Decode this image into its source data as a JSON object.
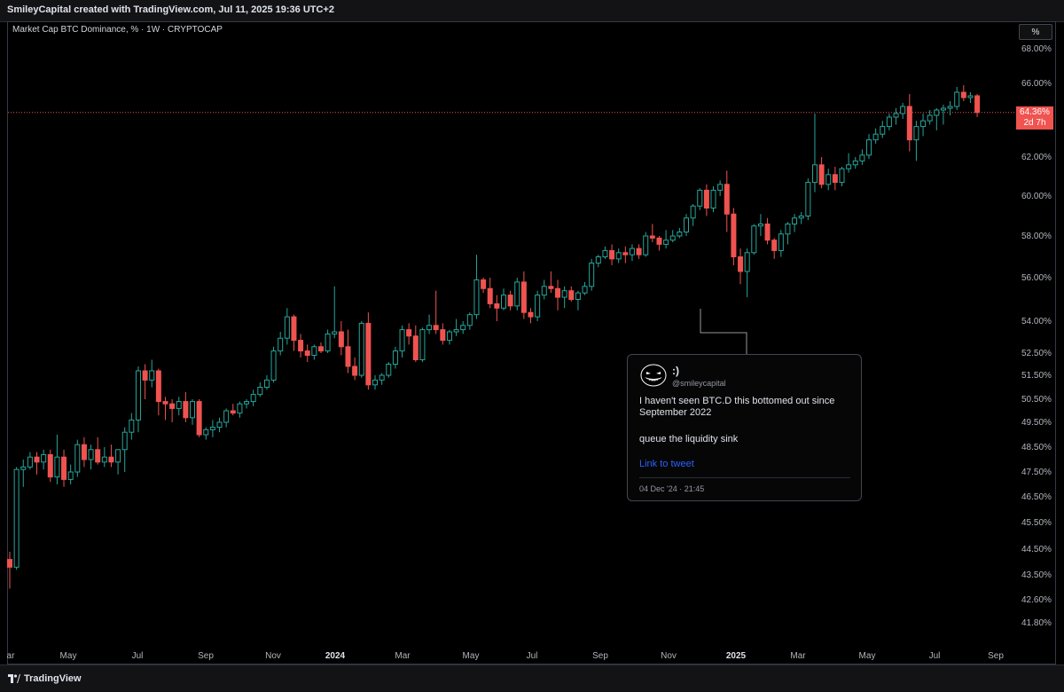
{
  "header": {
    "title": "SmileyCapital created with TradingView.com, Jul 11, 2025 19:36 UTC+2"
  },
  "legend": "Market Cap BTC Dominance, % · 1W · CRYPTOCAP",
  "scale_button": "%",
  "price_badge": {
    "price": "64.36%",
    "countdown": "2d 7h",
    "color": "#f05350"
  },
  "footer": {
    "brand": "TradingView"
  },
  "colors": {
    "up": "#26a69a",
    "down": "#ef5350",
    "background": "#000000",
    "last_price_line": "#f05350"
  },
  "tweet": {
    "name": ":)",
    "handle": "@smileycapital",
    "text": "I haven't seen BTC.D this bottomed out since September 2022",
    "text2": "queue the liquidity sink",
    "link": "Link to tweet",
    "date": "04 Dec '24 · 21:45"
  },
  "chart_data": {
    "type": "candlestick",
    "title": "Market Cap BTC Dominance, % · 1W · CRYPTOCAP",
    "interval": "1W",
    "unit": "%",
    "x_tick_labels": [
      "ar",
      "May",
      "Jul",
      "Sep",
      "Nov",
      "2024",
      "Mar",
      "May",
      "Jul",
      "Sep",
      "Nov",
      "2025",
      "Mar",
      "May",
      "Jul",
      "Sep"
    ],
    "y_tick_labels": [
      "68.00%",
      "66.00%",
      "64.00%",
      "62.00%",
      "60.00%",
      "58.00%",
      "56.00%",
      "54.00%",
      "52.50%",
      "51.50%",
      "50.50%",
      "49.50%",
      "48.50%",
      "47.50%",
      "46.50%",
      "45.50%",
      "44.50%",
      "43.50%",
      "42.60%",
      "41.80%"
    ],
    "y_tick_values": [
      68.0,
      66.0,
      64.0,
      62.0,
      60.0,
      58.0,
      56.0,
      54.0,
      52.5,
      51.5,
      50.5,
      49.5,
      48.5,
      47.5,
      46.5,
      45.5,
      44.5,
      43.5,
      42.6,
      41.8
    ],
    "last_price": 64.36,
    "ohlc": [
      [
        44.1,
        44.4,
        43.0,
        43.8
      ],
      [
        43.8,
        47.7,
        43.7,
        47.6
      ],
      [
        47.6,
        48.0,
        46.9,
        47.7
      ],
      [
        47.7,
        48.3,
        47.6,
        48.1
      ],
      [
        48.1,
        48.3,
        47.4,
        47.9
      ],
      [
        47.9,
        48.4,
        47.6,
        48.2
      ],
      [
        48.2,
        48.4,
        47.1,
        47.3
      ],
      [
        47.3,
        49.0,
        47.0,
        48.1
      ],
      [
        48.1,
        48.4,
        46.9,
        47.2
      ],
      [
        47.2,
        47.8,
        47.0,
        47.5
      ],
      [
        47.5,
        48.8,
        47.3,
        48.6
      ],
      [
        48.6,
        48.9,
        47.7,
        48.0
      ],
      [
        48.0,
        48.6,
        47.6,
        48.4
      ],
      [
        48.4,
        48.9,
        47.8,
        47.9
      ],
      [
        47.9,
        48.5,
        47.7,
        48.1
      ],
      [
        48.1,
        48.6,
        47.7,
        47.9
      ],
      [
        47.9,
        48.4,
        47.4,
        48.4
      ],
      [
        48.4,
        49.3,
        47.5,
        49.1
      ],
      [
        49.1,
        49.9,
        48.8,
        49.6
      ],
      [
        49.6,
        51.9,
        49.1,
        51.7
      ],
      [
        51.7,
        52.0,
        50.5,
        51.3
      ],
      [
        51.3,
        52.2,
        51.0,
        51.7
      ],
      [
        51.7,
        51.8,
        49.8,
        50.4
      ],
      [
        50.4,
        50.6,
        49.6,
        50.3
      ],
      [
        50.3,
        50.5,
        49.5,
        50.1
      ],
      [
        50.1,
        50.6,
        49.8,
        50.4
      ],
      [
        50.4,
        50.8,
        49.5,
        49.7
      ],
      [
        49.7,
        50.5,
        49.4,
        50.4
      ],
      [
        50.4,
        50.5,
        48.9,
        49.0
      ],
      [
        49.0,
        49.3,
        48.8,
        49.2
      ],
      [
        49.2,
        49.6,
        48.9,
        49.3
      ],
      [
        49.3,
        49.7,
        49.1,
        49.5
      ],
      [
        49.5,
        50.1,
        49.3,
        50.0
      ],
      [
        50.0,
        50.3,
        49.8,
        49.9
      ],
      [
        49.9,
        50.4,
        49.7,
        50.3
      ],
      [
        50.3,
        50.5,
        50.1,
        50.4
      ],
      [
        50.4,
        50.9,
        50.2,
        50.7
      ],
      [
        50.7,
        51.2,
        50.6,
        51.0
      ],
      [
        51.0,
        51.5,
        50.9,
        51.3
      ],
      [
        51.3,
        52.8,
        51.2,
        52.6
      ],
      [
        52.6,
        53.5,
        52.4,
        53.2
      ],
      [
        53.2,
        54.6,
        52.9,
        54.2
      ],
      [
        54.2,
        54.3,
        52.6,
        53.1
      ],
      [
        53.1,
        53.4,
        52.3,
        52.6
      ],
      [
        52.6,
        52.9,
        52.1,
        52.4
      ],
      [
        52.4,
        52.9,
        52.2,
        52.8
      ],
      [
        52.8,
        53.0,
        52.5,
        52.6
      ],
      [
        52.6,
        53.6,
        52.5,
        53.4
      ],
      [
        53.4,
        55.6,
        53.2,
        53.5
      ],
      [
        53.5,
        54.0,
        52.4,
        52.8
      ],
      [
        52.8,
        53.6,
        51.6,
        51.9
      ],
      [
        51.9,
        52.3,
        51.3,
        51.5
      ],
      [
        51.5,
        54.0,
        51.4,
        53.9
      ],
      [
        53.9,
        54.4,
        50.9,
        51.1
      ],
      [
        51.1,
        51.5,
        50.9,
        51.3
      ],
      [
        51.3,
        51.6,
        51.1,
        51.5
      ],
      [
        51.5,
        52.1,
        51.4,
        52.0
      ],
      [
        52.0,
        52.8,
        51.8,
        52.6
      ],
      [
        52.6,
        53.8,
        52.3,
        53.6
      ],
      [
        53.6,
        53.9,
        52.9,
        53.3
      ],
      [
        53.3,
        53.8,
        52.1,
        52.2
      ],
      [
        52.2,
        53.7,
        52.1,
        53.6
      ],
      [
        53.6,
        54.3,
        53.4,
        53.8
      ],
      [
        53.8,
        55.4,
        53.4,
        53.6
      ],
      [
        53.6,
        53.9,
        52.9,
        53.1
      ],
      [
        53.1,
        53.6,
        52.9,
        53.5
      ],
      [
        53.5,
        54.1,
        53.3,
        53.6
      ],
      [
        53.6,
        54.0,
        53.4,
        53.8
      ],
      [
        53.8,
        54.4,
        53.6,
        54.3
      ],
      [
        54.3,
        57.1,
        54.1,
        55.9
      ],
      [
        55.9,
        56.0,
        55.3,
        55.5
      ],
      [
        55.5,
        56.0,
        54.6,
        54.8
      ],
      [
        54.8,
        55.2,
        54.0,
        54.6
      ],
      [
        54.6,
        55.5,
        54.5,
        55.2
      ],
      [
        55.2,
        55.4,
        54.5,
        54.7
      ],
      [
        54.7,
        56.0,
        54.5,
        55.8
      ],
      [
        55.8,
        56.3,
        54.1,
        54.4
      ],
      [
        54.4,
        54.6,
        53.9,
        54.2
      ],
      [
        54.2,
        55.4,
        54.0,
        55.2
      ],
      [
        55.2,
        55.9,
        55.0,
        55.6
      ],
      [
        55.6,
        56.3,
        55.3,
        55.5
      ],
      [
        55.5,
        55.9,
        54.5,
        55.1
      ],
      [
        55.1,
        55.6,
        54.6,
        55.4
      ],
      [
        55.4,
        55.6,
        54.9,
        55.0
      ],
      [
        55.0,
        55.4,
        54.5,
        55.3
      ],
      [
        55.3,
        55.8,
        55.2,
        55.6
      ],
      [
        55.6,
        56.9,
        55.4,
        56.7
      ],
      [
        56.7,
        57.1,
        56.5,
        57.0
      ],
      [
        57.0,
        57.5,
        56.9,
        57.3
      ],
      [
        57.3,
        57.6,
        56.6,
        56.9
      ],
      [
        56.9,
        57.4,
        56.7,
        57.2
      ],
      [
        57.2,
        57.5,
        56.7,
        57.1
      ],
      [
        57.1,
        57.6,
        56.8,
        57.4
      ],
      [
        57.4,
        57.6,
        56.9,
        57.1
      ],
      [
        57.1,
        58.2,
        57.0,
        58.0
      ],
      [
        58.0,
        58.6,
        57.7,
        57.9
      ],
      [
        57.9,
        58.0,
        57.3,
        57.6
      ],
      [
        57.6,
        58.3,
        57.4,
        57.8
      ],
      [
        57.8,
        58.3,
        57.7,
        58.0
      ],
      [
        58.0,
        58.4,
        57.9,
        58.2
      ],
      [
        58.2,
        59.1,
        58.0,
        58.9
      ],
      [
        58.9,
        59.6,
        58.5,
        59.5
      ],
      [
        59.5,
        60.4,
        59.3,
        60.3
      ],
      [
        60.3,
        60.6,
        59.0,
        59.4
      ],
      [
        59.4,
        60.5,
        59.2,
        60.3
      ],
      [
        60.3,
        60.8,
        60.0,
        60.6
      ],
      [
        60.6,
        61.3,
        58.2,
        59.1
      ],
      [
        59.1,
        59.4,
        56.6,
        57.0
      ],
      [
        57.0,
        57.4,
        55.7,
        56.3
      ],
      [
        56.3,
        57.4,
        55.1,
        57.2
      ],
      [
        57.2,
        58.6,
        57.1,
        58.5
      ],
      [
        58.5,
        59.1,
        58.0,
        58.6
      ],
      [
        58.6,
        58.9,
        57.6,
        57.8
      ],
      [
        57.8,
        57.9,
        56.9,
        57.3
      ],
      [
        57.3,
        58.3,
        57.0,
        58.1
      ],
      [
        58.1,
        58.7,
        57.6,
        58.6
      ],
      [
        58.6,
        59.1,
        58.2,
        58.9
      ],
      [
        58.9,
        59.2,
        58.6,
        59.0
      ],
      [
        59.0,
        60.9,
        58.8,
        60.7
      ],
      [
        60.7,
        64.3,
        60.2,
        61.6
      ],
      [
        61.6,
        62.0,
        60.4,
        60.6
      ],
      [
        60.6,
        61.4,
        60.3,
        61.1
      ],
      [
        61.1,
        61.5,
        60.3,
        60.7
      ],
      [
        60.7,
        61.5,
        60.5,
        61.4
      ],
      [
        61.4,
        62.2,
        61.2,
        61.6
      ],
      [
        61.6,
        62.0,
        61.4,
        61.8
      ],
      [
        61.8,
        62.4,
        61.6,
        62.1
      ],
      [
        62.1,
        63.2,
        61.9,
        62.9
      ],
      [
        62.9,
        63.5,
        62.7,
        63.2
      ],
      [
        63.2,
        63.9,
        63.0,
        63.6
      ],
      [
        63.6,
        64.3,
        63.4,
        64.1
      ],
      [
        64.1,
        64.6,
        63.7,
        64.3
      ],
      [
        64.3,
        64.9,
        64.0,
        64.7
      ],
      [
        64.7,
        65.4,
        62.3,
        62.9
      ],
      [
        62.9,
        63.9,
        61.8,
        63.6
      ],
      [
        63.6,
        64.3,
        63.1,
        63.9
      ],
      [
        63.9,
        64.5,
        63.7,
        64.2
      ],
      [
        64.2,
        64.6,
        63.4,
        64.5
      ],
      [
        64.5,
        64.8,
        63.7,
        64.6
      ],
      [
        64.6,
        65.0,
        64.2,
        64.7
      ],
      [
        64.7,
        65.8,
        64.5,
        65.5
      ],
      [
        65.5,
        65.9,
        65.0,
        65.2
      ],
      [
        65.2,
        65.5,
        64.9,
        65.3
      ],
      [
        65.3,
        65.4,
        64.1,
        64.36
      ]
    ]
  }
}
